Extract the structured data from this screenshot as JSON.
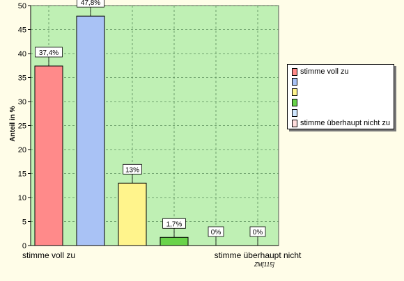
{
  "chart_data": {
    "type": "bar",
    "categories": [
      "stimme voll zu",
      "",
      "",
      "",
      "",
      "stimme überhaupt nicht"
    ],
    "values": [
      37.4,
      47.8,
      13,
      1.7,
      0,
      0
    ],
    "data_labels": [
      "37,4%",
      "47,8%",
      "13%",
      "1,7%",
      "0%",
      "0%"
    ],
    "colors": [
      "#ff8a8a",
      "#a9c2f5",
      "#fff48c",
      "#69d34a",
      "#cfe7ff",
      "#ffdede"
    ],
    "ylabel": "Anteil in %",
    "ylim": [
      0,
      50
    ],
    "yticks": [
      0,
      5,
      10,
      15,
      20,
      25,
      30,
      35,
      40,
      45,
      50
    ],
    "grid": true,
    "background": "#bff0b4",
    "legend": {
      "position": "right",
      "entries": [
        {
          "label": "stimme voll zu",
          "color": "#ff8a8a"
        },
        {
          "label": "",
          "color": "#a9c2f5"
        },
        {
          "label": "",
          "color": "#fff48c"
        },
        {
          "label": "",
          "color": "#69d34a"
        },
        {
          "label": "",
          "color": "#cfe7ff"
        },
        {
          "label": "stimme überhaupt nicht zu",
          "color": "#ffdede"
        }
      ]
    },
    "footnote": "ZM[115]"
  }
}
